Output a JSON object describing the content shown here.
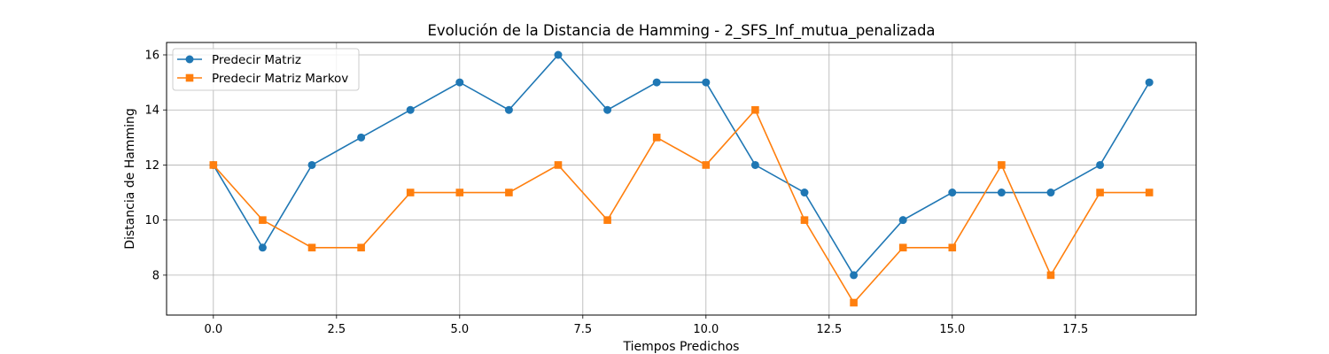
{
  "chart_data": {
    "type": "line",
    "title": "Evolución de la Distancia de Hamming - 2_SFS_Inf_mutua_penalizada",
    "xlabel": "Tiempos Predichos",
    "ylabel": "Distancia de Hamming",
    "xlim": [
      -0.95,
      19.95
    ],
    "ylim": [
      6.55,
      16.45
    ],
    "xticks": [
      0,
      2.5,
      5,
      7.5,
      10,
      12.5,
      15,
      17.5
    ],
    "xtick_labels": [
      "0.0",
      "2.5",
      "5.0",
      "7.5",
      "10.0",
      "12.5",
      "15.0",
      "17.5"
    ],
    "yticks": [
      8,
      10,
      12,
      14,
      16
    ],
    "ytick_labels": [
      "8",
      "10",
      "12",
      "14",
      "16"
    ],
    "grid": true,
    "legend_position": "upper-left",
    "x": [
      0,
      1,
      2,
      3,
      4,
      5,
      6,
      7,
      8,
      9,
      10,
      11,
      12,
      13,
      14,
      15,
      16,
      17,
      18,
      19
    ],
    "series": [
      {
        "name": "Predecir Matriz",
        "color": "#1f77b4",
        "marker": "circle",
        "values": [
          12,
          9,
          12,
          13,
          14,
          15,
          14,
          16,
          14,
          15,
          15,
          12,
          11,
          8,
          10,
          11,
          11,
          11,
          12,
          15
        ]
      },
      {
        "name": "Predecir Matriz Markov",
        "color": "#ff7f0e",
        "marker": "square",
        "values": [
          12,
          10,
          9,
          9,
          11,
          11,
          11,
          12,
          10,
          13,
          12,
          14,
          10,
          7,
          9,
          9,
          12,
          8,
          11,
          11
        ]
      }
    ]
  }
}
